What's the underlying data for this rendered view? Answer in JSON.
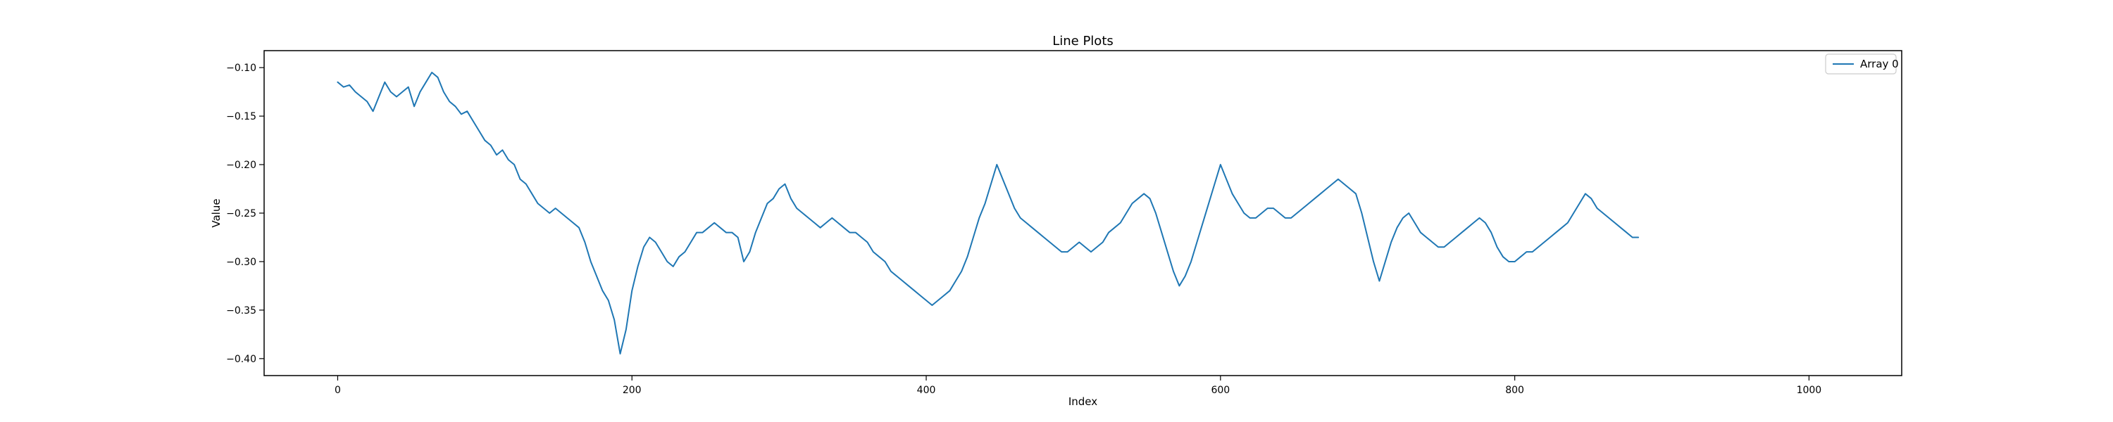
{
  "chart_data": {
    "type": "line",
    "title": "Line Plots",
    "xlabel": "Index",
    "ylabel": "Value",
    "xlim": [
      -50,
      1063
    ],
    "ylim": [
      -0.4175,
      -0.0825
    ],
    "x_ticks": [
      0,
      200,
      400,
      600,
      800,
      1000
    ],
    "x_tick_labels": [
      "0",
      "200",
      "400",
      "600",
      "800",
      "1000"
    ],
    "y_ticks": [
      -0.4,
      -0.35,
      -0.3,
      -0.25,
      -0.2,
      -0.15,
      -0.1
    ],
    "y_tick_labels": [
      "−0.40",
      "−0.35",
      "−0.30",
      "−0.25",
      "−0.20",
      "−0.15",
      "−0.10"
    ],
    "grid": false,
    "legend": {
      "placement": "top-right",
      "entries": [
        "Array 0"
      ]
    },
    "series": [
      {
        "name": "Array 0",
        "color": "#1f77b4",
        "x_start": 0,
        "x_step": 4,
        "values": [
          -0.115,
          -0.12,
          -0.118,
          -0.125,
          -0.13,
          -0.135,
          -0.145,
          -0.13,
          -0.115,
          -0.125,
          -0.13,
          -0.125,
          -0.12,
          -0.14,
          -0.125,
          -0.115,
          -0.105,
          -0.11,
          -0.125,
          -0.135,
          -0.14,
          -0.148,
          -0.145,
          -0.155,
          -0.165,
          -0.175,
          -0.18,
          -0.19,
          -0.185,
          -0.195,
          -0.2,
          -0.215,
          -0.22,
          -0.23,
          -0.24,
          -0.245,
          -0.25,
          -0.245,
          -0.25,
          -0.255,
          -0.26,
          -0.265,
          -0.28,
          -0.3,
          -0.315,
          -0.33,
          -0.34,
          -0.36,
          -0.395,
          -0.37,
          -0.33,
          -0.305,
          -0.285,
          -0.275,
          -0.28,
          -0.29,
          -0.3,
          -0.305,
          -0.295,
          -0.29,
          -0.28,
          -0.27,
          -0.27,
          -0.265,
          -0.26,
          -0.265,
          -0.27,
          -0.27,
          -0.275,
          -0.3,
          -0.29,
          -0.27,
          -0.255,
          -0.24,
          -0.235,
          -0.225,
          -0.22,
          -0.235,
          -0.245,
          -0.25,
          -0.255,
          -0.26,
          -0.265,
          -0.26,
          -0.255,
          -0.26,
          -0.265,
          -0.27,
          -0.27,
          -0.275,
          -0.28,
          -0.29,
          -0.295,
          -0.3,
          -0.31,
          -0.315,
          -0.32,
          -0.325,
          -0.33,
          -0.335,
          -0.34,
          -0.345,
          -0.34,
          -0.335,
          -0.33,
          -0.32,
          -0.31,
          -0.295,
          -0.275,
          -0.255,
          -0.24,
          -0.22,
          -0.2,
          -0.215,
          -0.23,
          -0.245,
          -0.255,
          -0.26,
          -0.265,
          -0.27,
          -0.275,
          -0.28,
          -0.285,
          -0.29,
          -0.29,
          -0.285,
          -0.28,
          -0.285,
          -0.29,
          -0.285,
          -0.28,
          -0.27,
          -0.265,
          -0.26,
          -0.25,
          -0.24,
          -0.235,
          -0.23,
          -0.235,
          -0.25,
          -0.27,
          -0.29,
          -0.31,
          -0.325,
          -0.315,
          -0.3,
          -0.28,
          -0.26,
          -0.24,
          -0.22,
          -0.2,
          -0.215,
          -0.23,
          -0.24,
          -0.25,
          -0.255,
          -0.255,
          -0.25,
          -0.245,
          -0.245,
          -0.25,
          -0.255,
          -0.255,
          -0.25,
          -0.245,
          -0.24,
          -0.235,
          -0.23,
          -0.225,
          -0.22,
          -0.215,
          -0.22,
          -0.225,
          -0.23,
          -0.25,
          -0.275,
          -0.3,
          -0.32,
          -0.3,
          -0.28,
          -0.265,
          -0.255,
          -0.25,
          -0.26,
          -0.27,
          -0.275,
          -0.28,
          -0.285,
          -0.285,
          -0.28,
          -0.275,
          -0.27,
          -0.265,
          -0.26,
          -0.255,
          -0.26,
          -0.27,
          -0.285,
          -0.295,
          -0.3,
          -0.3,
          -0.295,
          -0.29,
          -0.29,
          -0.285,
          -0.28,
          -0.275,
          -0.27,
          -0.265,
          -0.26,
          -0.25,
          -0.24,
          -0.23,
          -0.235,
          -0.245,
          -0.25,
          -0.255,
          -0.26,
          -0.265,
          -0.27,
          -0.275,
          -0.275
        ]
      }
    ]
  }
}
